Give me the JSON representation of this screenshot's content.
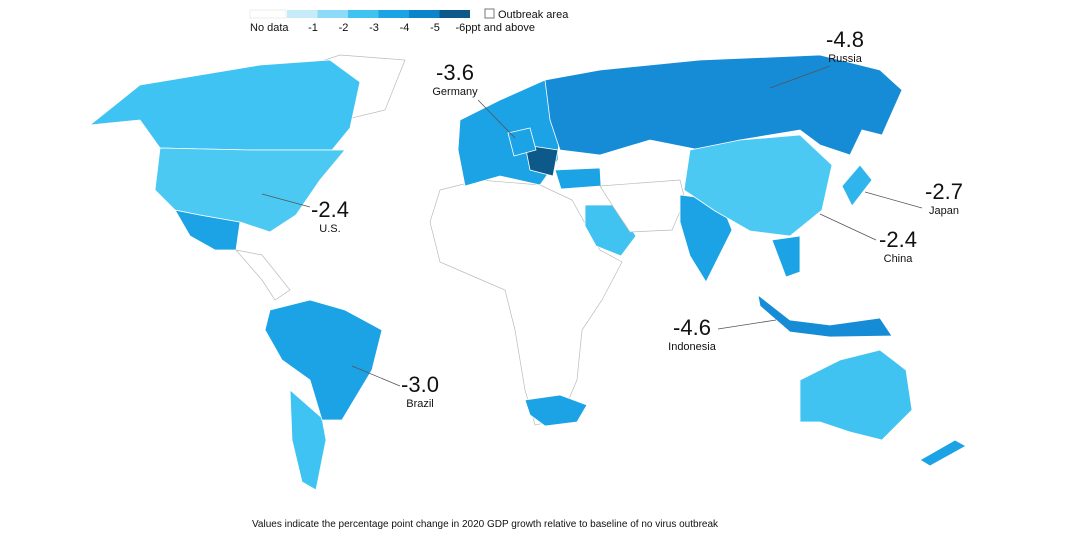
{
  "legend": {
    "items": [
      {
        "label": "No data",
        "color": "#ffffff"
      },
      {
        "label": "-1",
        "color": "#c7ebf9"
      },
      {
        "label": "-2",
        "color": "#8ddbf6"
      },
      {
        "label": "-3",
        "color": "#41c3f1"
      },
      {
        "label": "-4",
        "color": "#1ba3e5"
      },
      {
        "label": "-5",
        "color": "#0b84cc"
      },
      {
        "label": "-6ppt and above",
        "color": "#0d5a8a"
      }
    ],
    "outbreak": "Outbreak area"
  },
  "regions": [
    {
      "name": "Russia",
      "value": -4.8,
      "color": "#168cd6"
    },
    {
      "name": "Germany",
      "value": -3.6,
      "color": "#1ba3e5"
    },
    {
      "name": "U.S.",
      "value": -2.4,
      "color": "#4cc9f3"
    },
    {
      "name": "Japan",
      "value": -2.7,
      "color": "#2fb5ec"
    },
    {
      "name": "China",
      "value": -2.4,
      "color": "#4cc9f3"
    },
    {
      "name": "Indonesia",
      "value": -4.6,
      "color": "#168cd6"
    },
    {
      "name": "Brazil",
      "value": -3,
      "value_label": "-3.0",
      "color": "#1ba3e5"
    }
  ],
  "footnote": "Values indicate the percentage point change in 2020 GDP growth relative to baseline of no virus outbreak"
}
